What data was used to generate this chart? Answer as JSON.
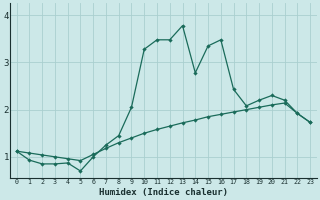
{
  "title": "",
  "xlabel": "Humidex (Indice chaleur)",
  "ylabel": "",
  "background_color": "#cce8e8",
  "grid_color": "#aacfcf",
  "line_color": "#1a6b5a",
  "xlim": [
    -0.5,
    23.5
  ],
  "ylim": [
    0.55,
    4.25
  ],
  "xticks": [
    0,
    1,
    2,
    3,
    4,
    5,
    6,
    7,
    8,
    9,
    10,
    11,
    12,
    13,
    14,
    15,
    16,
    17,
    18,
    19,
    20,
    21,
    22,
    23
  ],
  "yticks": [
    1,
    2,
    3,
    4
  ],
  "hline_y": [
    1,
    2,
    3,
    4
  ],
  "line1_x": [
    0,
    1,
    2,
    3,
    4,
    5,
    6,
    7,
    8,
    9,
    10,
    11,
    12,
    13,
    14,
    15,
    16,
    17,
    18,
    19,
    20,
    21,
    22,
    23
  ],
  "line1_y": [
    1.12,
    0.93,
    0.85,
    0.85,
    0.87,
    0.7,
    1.0,
    1.25,
    1.45,
    2.05,
    3.28,
    3.48,
    3.48,
    3.78,
    2.78,
    3.35,
    3.48,
    2.43,
    2.08,
    2.2,
    2.3,
    2.2,
    1.92,
    1.73
  ],
  "line2_x": [
    0,
    1,
    2,
    3,
    4,
    5,
    6,
    7,
    8,
    9,
    10,
    11,
    12,
    13,
    14,
    15,
    16,
    17,
    18,
    19,
    20,
    21,
    22,
    23
  ],
  "line2_y": [
    1.12,
    1.08,
    1.04,
    1.0,
    0.96,
    0.92,
    1.05,
    1.18,
    1.3,
    1.4,
    1.5,
    1.58,
    1.65,
    1.72,
    1.78,
    1.85,
    1.9,
    1.95,
    2.0,
    2.05,
    2.1,
    2.14,
    1.92,
    1.73
  ]
}
